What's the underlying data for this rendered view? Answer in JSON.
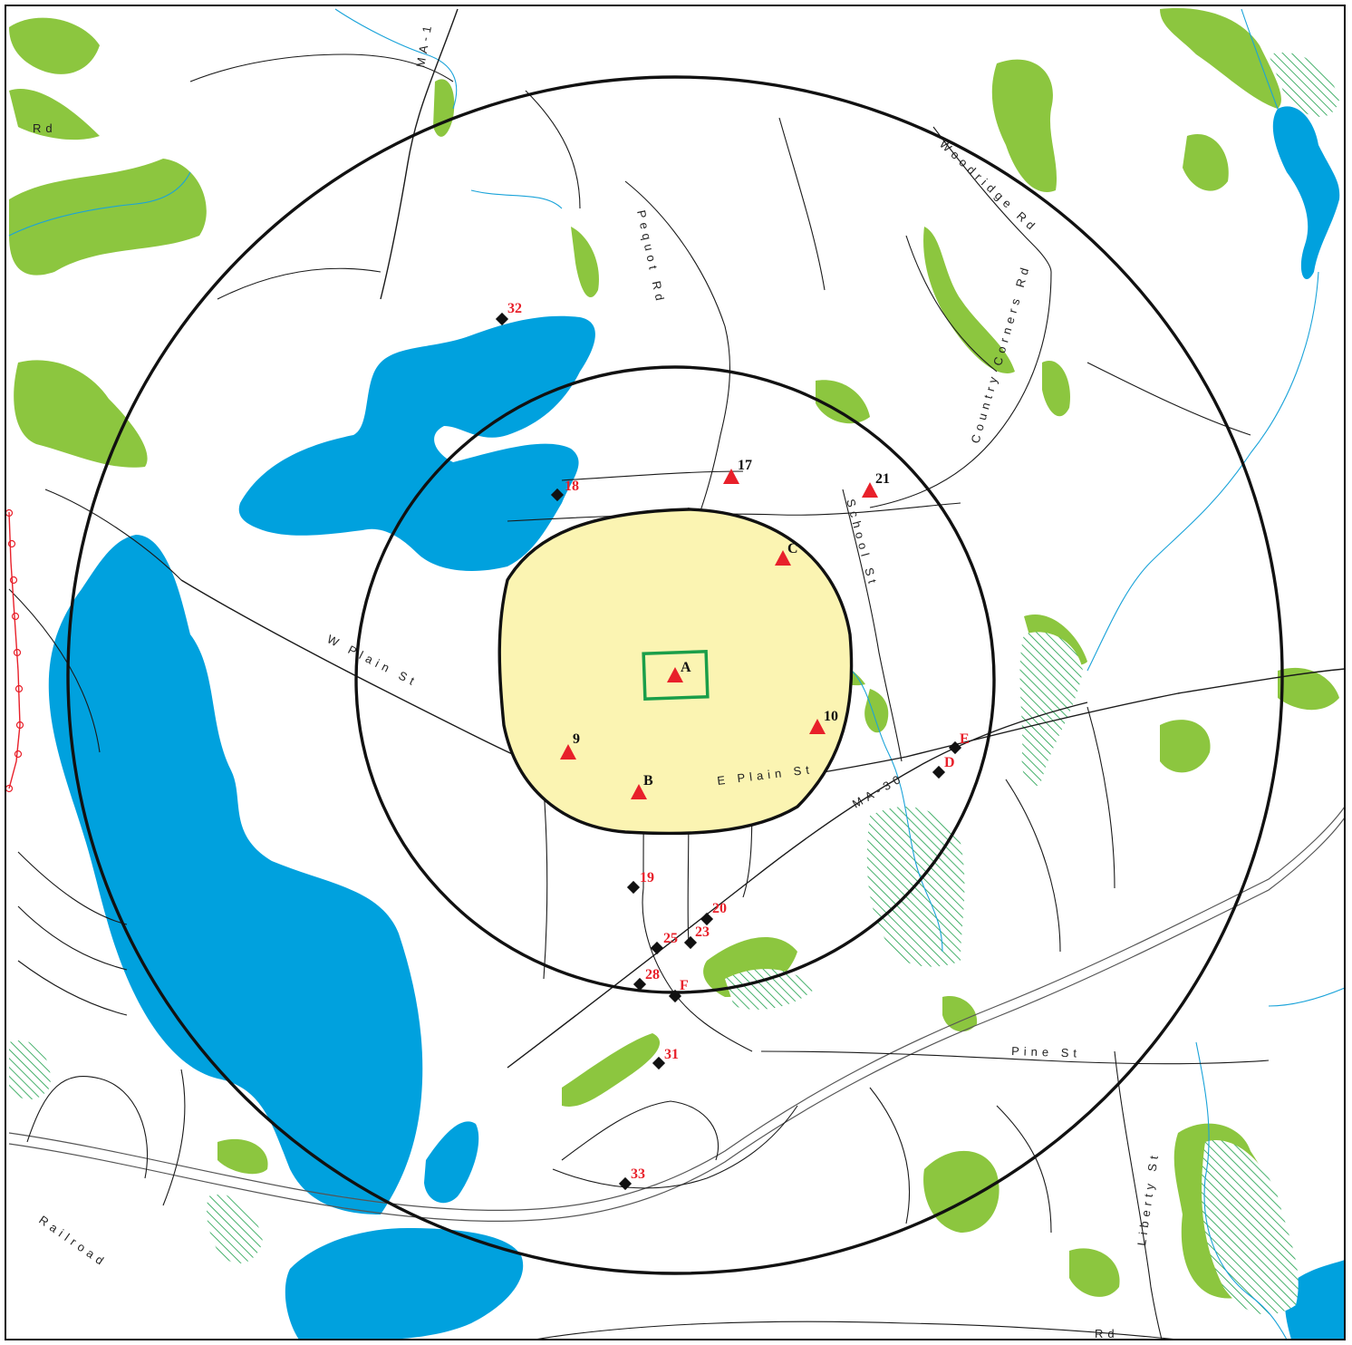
{
  "streets": {
    "ma1": "MA-1",
    "rd_top_left": "Rd",
    "pequot": "Pequot Rd",
    "woodridge": "Woodridge Rd",
    "country_corners": "Country Corners Rd",
    "school": "School St",
    "w_plain": "W Plain St",
    "e_plain": "E Plain St",
    "ma30": "MA-30",
    "pine": "Pine St",
    "liberty": "Liberty St",
    "railroad": "Railroad",
    "rd_bottom": "Rd"
  },
  "sites": [
    {
      "label": "A",
      "marker": "triangle",
      "label_color": "black"
    },
    {
      "label": "B",
      "marker": "triangle",
      "label_color": "black"
    },
    {
      "label": "C",
      "marker": "triangle",
      "label_color": "black"
    },
    {
      "label": "9",
      "marker": "triangle",
      "label_color": "black"
    },
    {
      "label": "10",
      "marker": "triangle",
      "label_color": "black"
    },
    {
      "label": "17",
      "marker": "triangle",
      "label_color": "black"
    },
    {
      "label": "21",
      "marker": "triangle",
      "label_color": "black"
    },
    {
      "label": "18",
      "marker": "diamond",
      "label_color": "red"
    },
    {
      "label": "32",
      "marker": "diamond",
      "label_color": "red"
    },
    {
      "label": "E",
      "marker": "diamond",
      "label_color": "red"
    },
    {
      "label": "D",
      "marker": "diamond",
      "label_color": "red"
    },
    {
      "label": "19",
      "marker": "diamond",
      "label_color": "red"
    },
    {
      "label": "20",
      "marker": "diamond",
      "label_color": "red"
    },
    {
      "label": "23",
      "marker": "diamond",
      "label_color": "red"
    },
    {
      "label": "25",
      "marker": "diamond",
      "label_color": "red"
    },
    {
      "label": "28",
      "marker": "diamond",
      "label_color": "red"
    },
    {
      "label": "F",
      "marker": "diamond",
      "label_color": "red"
    },
    {
      "label": "31",
      "marker": "diamond",
      "label_color": "red"
    },
    {
      "label": "33",
      "marker": "diamond",
      "label_color": "red"
    }
  ],
  "colors": {
    "water": "#00a1de",
    "vegetation": "#8cc63f",
    "core_zone": "#fbf4b2",
    "site_boundary": "#1a9e49",
    "marker_red": "#e8202a",
    "marker_black": "#111111"
  }
}
